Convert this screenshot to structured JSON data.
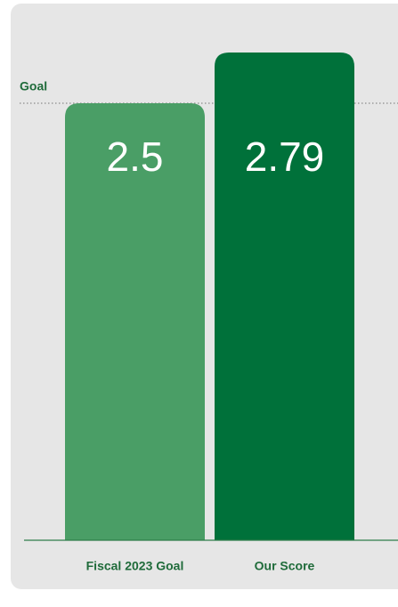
{
  "chart_data": {
    "type": "bar",
    "categories": [
      "Fiscal 2023 Goal",
      "Our Score"
    ],
    "values": [
      2.5,
      2.79
    ],
    "colors": [
      "#4a9e66",
      "#00713a"
    ],
    "goal": {
      "label": "Goal",
      "value": 2.5
    }
  }
}
